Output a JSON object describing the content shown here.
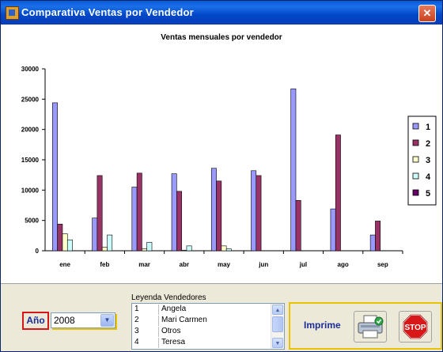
{
  "window": {
    "title": "Comparativa Ventas por Vendedor",
    "close_symbol": "✕"
  },
  "chart_data": {
    "type": "bar",
    "title": "Ventas mensuales por vendedor",
    "categories": [
      "ene",
      "feb",
      "mar",
      "abr",
      "may",
      "jun",
      "jul",
      "ago",
      "sep"
    ],
    "ylim": [
      0,
      30000
    ],
    "yticks": [
      "0",
      "5000",
      "10000",
      "15000",
      "20000",
      "25000",
      "30000"
    ],
    "legend_position": "right",
    "grid": false,
    "series": [
      {
        "name": "1",
        "color": "#9999ff",
        "values": [
          24400,
          5400,
          10500,
          12700,
          13600,
          13200,
          26700,
          6900,
          2600
        ]
      },
      {
        "name": "2",
        "color": "#993366",
        "values": [
          4400,
          12400,
          12800,
          9800,
          11500,
          12400,
          8300,
          19100,
          4900
        ]
      },
      {
        "name": "3",
        "color": "#ffffcc",
        "values": [
          2800,
          600,
          300,
          100,
          800,
          0,
          0,
          0,
          0
        ]
      },
      {
        "name": "4",
        "color": "#ccffff",
        "values": [
          1800,
          2600,
          1400,
          800,
          300,
          0,
          0,
          0,
          0
        ]
      },
      {
        "name": "5",
        "color": "#660066",
        "values": [
          0,
          0,
          0,
          0,
          0,
          0,
          0,
          0,
          0
        ]
      }
    ]
  },
  "year_filter": {
    "label": "Año",
    "value": "2008"
  },
  "vendors_legend": {
    "title": "Leyenda Vendedores",
    "rows": [
      {
        "num": "1",
        "name": "Angela"
      },
      {
        "num": "2",
        "name": "Mari Carmen"
      },
      {
        "num": "3",
        "name": "Otros"
      },
      {
        "num": "4",
        "name": "Teresa"
      }
    ]
  },
  "print": {
    "label": "Imprime"
  },
  "stop": {
    "label": "STOP"
  },
  "icons": [
    "app-icon",
    "close-icon",
    "chevron-down-icon",
    "scroll-up-icon",
    "scroll-down-icon",
    "printer-icon",
    "stop-sign-icon"
  ]
}
